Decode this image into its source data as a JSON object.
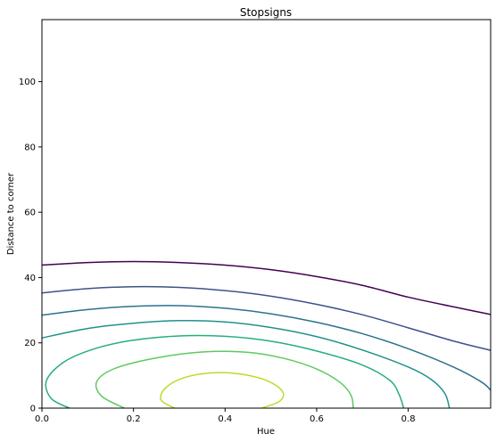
{
  "chart_data": {
    "type": "contour",
    "title": "Stopsigns",
    "xlabel": "Hue",
    "ylabel": "Distance to corner",
    "xlim": [
      0,
      0.98
    ],
    "ylim": [
      0,
      119
    ],
    "xticks": [
      0.0,
      0.2,
      0.4,
      0.6,
      0.8
    ],
    "xtick_labels": [
      "0.0",
      "0.2",
      "0.4",
      "0.6",
      "0.8"
    ],
    "yticks": [
      0,
      20,
      40,
      60,
      80,
      100
    ],
    "ytick_labels": [
      "0",
      "20",
      "40",
      "60",
      "80",
      "100"
    ],
    "grid": false,
    "contours": [
      {
        "color": "#440154",
        "points": [
          [
            0.0,
            43.8
          ],
          [
            0.1,
            44.6
          ],
          [
            0.2,
            44.9
          ],
          [
            0.3,
            44.6
          ],
          [
            0.4,
            43.8
          ],
          [
            0.5,
            42.4
          ],
          [
            0.6,
            40.3
          ],
          [
            0.7,
            37.6
          ],
          [
            0.8,
            34.0
          ],
          [
            0.9,
            31.0
          ],
          [
            0.98,
            28.7
          ]
        ]
      },
      {
        "color": "#3b528b",
        "points": [
          [
            0.0,
            35.3
          ],
          [
            0.1,
            36.6
          ],
          [
            0.2,
            37.2
          ],
          [
            0.3,
            37.0
          ],
          [
            0.4,
            36.0
          ],
          [
            0.5,
            34.3
          ],
          [
            0.6,
            31.8
          ],
          [
            0.7,
            28.6
          ],
          [
            0.8,
            24.6
          ],
          [
            0.9,
            20.5
          ],
          [
            0.98,
            17.7
          ]
        ]
      },
      {
        "color": "#2c728e",
        "points": [
          [
            0.0,
            28.5
          ],
          [
            0.1,
            30.2
          ],
          [
            0.2,
            31.2
          ],
          [
            0.3,
            31.4
          ],
          [
            0.4,
            30.6
          ],
          [
            0.5,
            28.9
          ],
          [
            0.6,
            26.3
          ],
          [
            0.7,
            22.8
          ],
          [
            0.8,
            18.2
          ],
          [
            0.9,
            12.5
          ],
          [
            0.96,
            8.0
          ],
          [
            0.98,
            5.5
          ]
        ]
      },
      {
        "color": "#21918c",
        "points": [
          [
            0.0,
            21.5
          ],
          [
            0.1,
            24.4
          ],
          [
            0.2,
            26.0
          ],
          [
            0.3,
            26.8
          ],
          [
            0.4,
            26.4
          ],
          [
            0.5,
            24.7
          ],
          [
            0.6,
            21.9
          ],
          [
            0.7,
            17.8
          ],
          [
            0.8,
            12.6
          ],
          [
            0.85,
            8.8
          ],
          [
            0.88,
            4.5
          ],
          [
            0.89,
            0.0
          ]
        ]
      },
      {
        "color": "#27ad81",
        "points": [
          [
            0.06,
            0.0
          ],
          [
            0.02,
            3.0
          ],
          [
            0.01,
            8.5
          ],
          [
            0.05,
            14.3
          ],
          [
            0.12,
            18.4
          ],
          [
            0.2,
            20.8
          ],
          [
            0.3,
            22.1
          ],
          [
            0.4,
            22.0
          ],
          [
            0.5,
            20.5
          ],
          [
            0.6,
            17.5
          ],
          [
            0.7,
            13.2
          ],
          [
            0.76,
            8.5
          ],
          [
            0.78,
            4.2
          ],
          [
            0.79,
            0.0
          ]
        ]
      },
      {
        "color": "#5ec962",
        "points": [
          [
            0.18,
            0.0
          ],
          [
            0.13,
            3.7
          ],
          [
            0.12,
            8.2
          ],
          [
            0.16,
            12.2
          ],
          [
            0.25,
            15.4
          ],
          [
            0.35,
            17.2
          ],
          [
            0.45,
            17.1
          ],
          [
            0.53,
            15.2
          ],
          [
            0.6,
            12.0
          ],
          [
            0.65,
            8.0
          ],
          [
            0.675,
            4.0
          ],
          [
            0.68,
            0.0
          ]
        ]
      },
      {
        "color": "#b5de2b",
        "points": [
          [
            0.29,
            0.0
          ],
          [
            0.26,
            2.5
          ],
          [
            0.27,
            6.2
          ],
          [
            0.31,
            9.3
          ],
          [
            0.37,
            10.8
          ],
          [
            0.43,
            10.5
          ],
          [
            0.49,
            8.5
          ],
          [
            0.525,
            5.2
          ],
          [
            0.52,
            2.2
          ],
          [
            0.48,
            0.0
          ]
        ]
      }
    ]
  }
}
